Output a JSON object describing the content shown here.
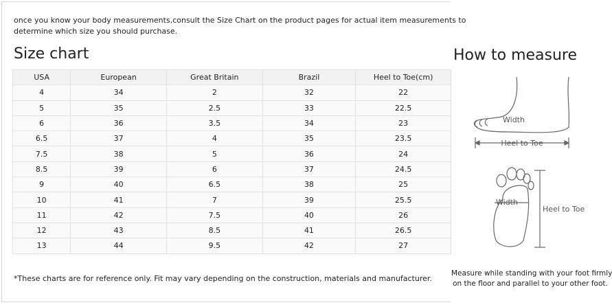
{
  "intro": [
    "once you know your body measurements,consult the Size Chart on the product pages for actual item measurements to",
    "determine which size you should purchase."
  ],
  "size_chart": {
    "title": "Size chart",
    "header": [
      "USA",
      "European",
      "Great Britain",
      "Brazil",
      "Heel to Toe(cm)"
    ],
    "rows": [
      [
        "4",
        "34",
        "2",
        "32",
        "22"
      ],
      [
        "5",
        "35",
        "2.5",
        "33",
        "22.5"
      ],
      [
        "6",
        "36",
        "3.5",
        "34",
        "23"
      ],
      [
        "6.5",
        "37",
        "4",
        "35",
        "23.5"
      ],
      [
        "7.5",
        "38",
        "5",
        "36",
        "24"
      ],
      [
        "8.5",
        "39",
        "6",
        "37",
        "24.5"
      ],
      [
        "9",
        "40",
        "6.5",
        "38",
        "25"
      ],
      [
        "10",
        "41",
        "7",
        "39",
        "25.5"
      ],
      [
        "11",
        "42",
        "7.5",
        "40",
        "26"
      ],
      [
        "12",
        "43",
        "8.5",
        "41",
        "26.5"
      ],
      [
        "13",
        "44",
        "9.5",
        "42",
        "27"
      ]
    ],
    "footnote": "*These charts are for reference only. Fit may vary depending on the construction, materials and manufacturer."
  },
  "how_to_measure": {
    "title": "How to measure",
    "side_labels": [
      "Width",
      "Heel to Toe"
    ],
    "sole_labels": [
      "Width",
      "Heel to Toe"
    ],
    "caption": [
      "Measure while standing with your foot firmly",
      "on the floor and parallel to your other foot."
    ]
  }
}
